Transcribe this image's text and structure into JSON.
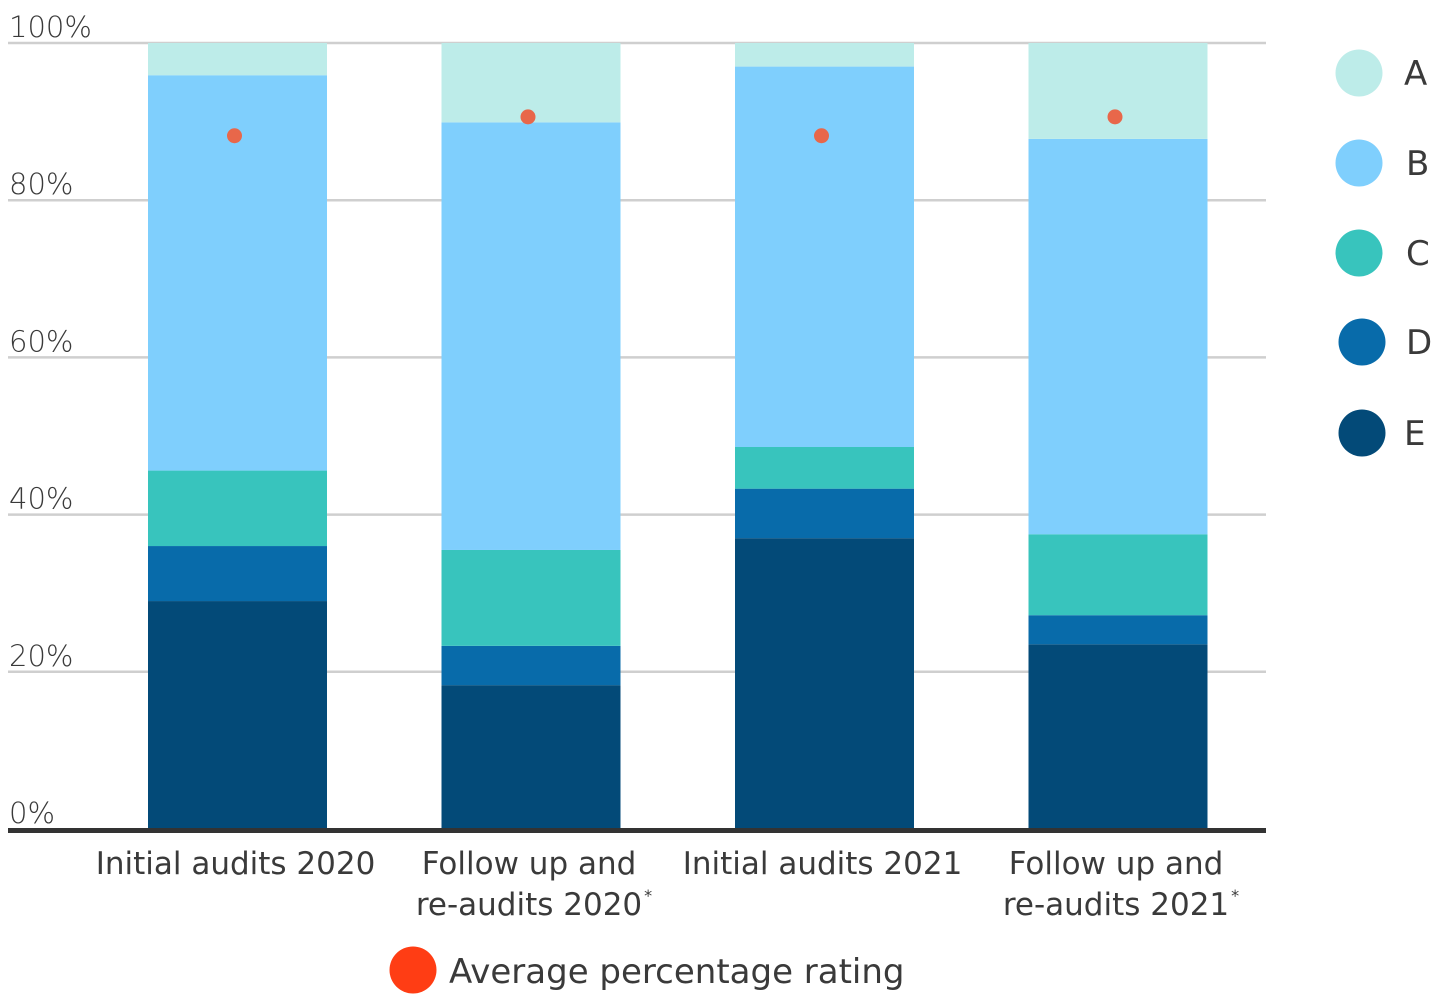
{
  "chart_data": {
    "type": "bar",
    "stacked": true,
    "categories": [
      [
        "Initial audits 2020"
      ],
      [
        "Follow up and",
        "re-audits 2020"
      ],
      [
        "Initial audits 2021"
      ],
      [
        "Follow up and",
        "re-audits 2021"
      ]
    ],
    "category_footnote_marks": [
      "",
      "*",
      "",
      "*"
    ],
    "y_ticks": [
      "0%",
      "20%",
      "40%",
      "60%",
      "80%",
      "100%"
    ],
    "ylim": [
      0,
      100
    ],
    "grid": true,
    "series": [
      {
        "name": "E",
        "color": "#034a78",
        "values": [
          29,
          18.3,
          37,
          23.5
        ]
      },
      {
        "name": "D",
        "color": "#086baa",
        "values": [
          7,
          5,
          6.3,
          3.7
        ]
      },
      {
        "name": "C",
        "color": "#38c4bd",
        "values": [
          9.6,
          12.2,
          5.3,
          10.3
        ]
      },
      {
        "name": "B",
        "color": "#7fcffd",
        "values": [
          50.3,
          54.4,
          48.4,
          50.3
        ]
      },
      {
        "name": "A",
        "color": "#bdece9",
        "values": [
          4.1,
          10.1,
          3,
          12.2
        ]
      }
    ],
    "average_percentage_rating": {
      "label": "Average percentage rating",
      "color": "#e8674a",
      "legend_color": "#ff3d14",
      "values": [
        88.2,
        90.6,
        88.2,
        90.6
      ]
    },
    "legend": {
      "placement": "right",
      "order": [
        "A",
        "B",
        "C",
        "D",
        "E"
      ]
    }
  }
}
